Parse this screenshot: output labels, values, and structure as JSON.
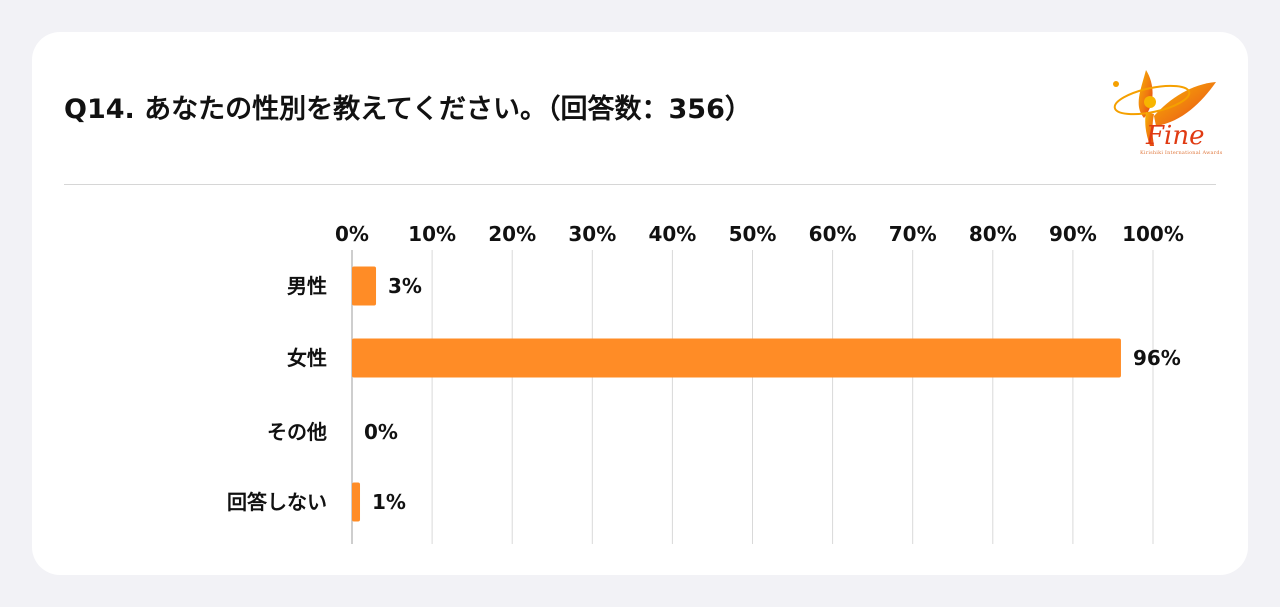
{
  "page": {
    "title": "Q14. あなたの性別を教えてください。（回答数：356）"
  },
  "logo": {
    "name": "Fine",
    "tagline": "Kirishiki International Awards",
    "colors": [
      "#f7b500",
      "#f07a10",
      "#e03a12"
    ]
  },
  "chart_data": {
    "type": "bar",
    "orientation": "horizontal",
    "categories": [
      "男性",
      "女性",
      "その他",
      "回答しない"
    ],
    "values": [
      3,
      96,
      0,
      1
    ],
    "value_labels": [
      "3%",
      "96%",
      "0%",
      "1%"
    ],
    "x_ticks": [
      "0%",
      "10%",
      "20%",
      "30%",
      "40%",
      "50%",
      "60%",
      "70%",
      "80%",
      "90%",
      "100%"
    ],
    "xlim": [
      0,
      100
    ],
    "grid": true,
    "bar_color": "#ff8c26",
    "legend": "none"
  }
}
